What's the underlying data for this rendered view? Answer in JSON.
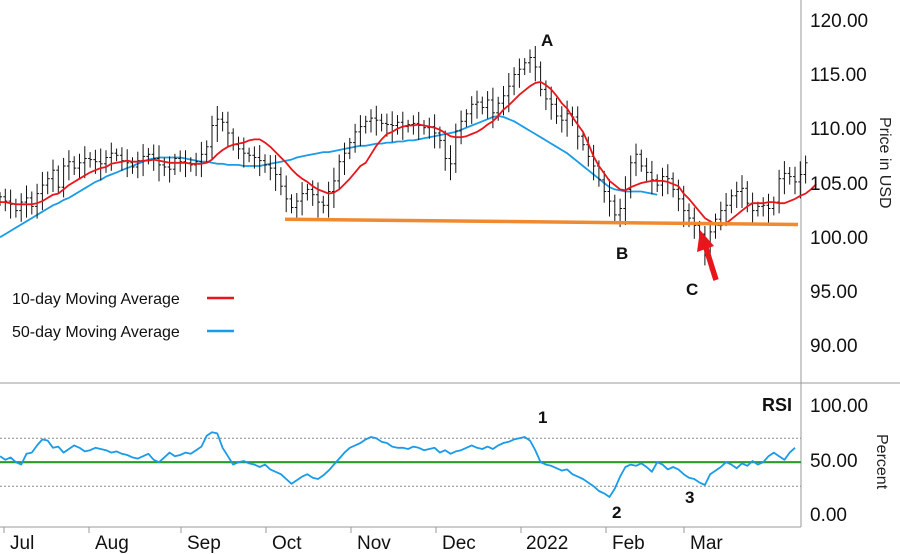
{
  "chart_data": [
    {
      "type": "ohlc",
      "ylabel": "Price in USD",
      "ylim": [
        86,
        122
      ],
      "ytick_labels": [
        "120.00",
        "115.00",
        "110.00",
        "105.00",
        "100.00",
        "95.00",
        "90.00"
      ],
      "ytick_values": [
        120,
        115,
        110,
        105,
        100,
        95,
        90
      ],
      "xtick_labels": [
        "Jul",
        "Aug",
        "Sep",
        "Oct",
        "Nov",
        "Dec",
        "2022",
        "Feb",
        "Mar"
      ],
      "legend": [
        {
          "name": "10-day Moving Average",
          "color": "#e8151b"
        },
        {
          "name": "50-day Moving Average",
          "color": "#1a9be8"
        }
      ],
      "annotations": [
        "A",
        "B",
        "C"
      ],
      "support_line": {
        "color": "#f08a30",
        "start_value": 101.4,
        "end_value": 100.9
      },
      "closes": [
        103.5,
        103.1,
        102.8,
        102.2,
        103.0,
        103.4,
        102.6,
        103.8,
        104.6,
        105.2,
        106.0,
        104.4,
        106.4,
        106.8,
        106.2,
        106.7,
        107.1,
        107.0,
        106.8,
        106.6,
        107.2,
        107.6,
        107.4,
        106.9,
        106.7,
        106.3,
        106.9,
        107.3,
        107.5,
        107.1,
        106.5,
        106.3,
        106.1,
        107.1,
        106.8,
        106.7,
        106.5,
        106.8,
        107.5,
        108.2,
        110.2,
        110.8,
        110.5,
        109.5,
        108.4,
        108.0,
        107.6,
        107.4,
        107.2,
        106.9,
        106.5,
        106.2,
        105.6,
        104.5,
        103.3,
        102.5,
        103.1,
        103.8,
        104.2,
        103.7,
        103.0,
        102.7,
        104.0,
        105.0,
        106.8,
        107.6,
        108.6,
        109.6,
        110.1,
        110.6,
        110.9,
        110.7,
        110.4,
        110.3,
        110.2,
        110.5,
        110.1,
        110.3,
        110.4,
        110.2,
        110.0,
        110.1,
        109.5,
        108.8,
        107.1,
        106.6,
        109.7,
        110.6,
        111.3,
        112.2,
        112.4,
        111.9,
        112.6,
        111.4,
        112.3,
        113.0,
        113.9,
        115.0,
        115.5,
        116.1,
        116.6,
        115.7,
        113.6,
        112.7,
        112.2,
        111.1,
        110.7,
        111.3,
        111.0,
        109.2,
        108.4,
        107.3,
        106.4,
        105.1,
        104.0,
        103.1,
        101.8,
        102.4,
        104.2,
        106.7,
        107.5,
        106.4,
        105.8,
        105.1,
        104.6,
        105.4,
        105.2,
        104.2,
        103.3,
        102.2,
        101.5,
        100.8,
        100.0,
        98.0,
        100.2,
        101.4,
        102.2,
        102.7,
        103.6,
        104.0,
        104.3,
        102.9,
        102.2,
        102.6,
        102.7,
        102.4,
        103.0,
        105.2,
        105.7,
        105.4,
        104.9,
        105.6,
        106.7
      ],
      "ma10": [
        103.0,
        103.0,
        102.9,
        102.8,
        102.8,
        102.8,
        102.8,
        102.9,
        103.1,
        103.4,
        103.7,
        103.8,
        104.2,
        104.6,
        104.9,
        105.2,
        105.5,
        105.8,
        106.0,
        106.2,
        106.3,
        106.6,
        106.7,
        106.8,
        106.9,
        106.8,
        106.8,
        106.9,
        106.9,
        107.0,
        106.9,
        106.8,
        106.7,
        106.7,
        106.7,
        106.7,
        106.6,
        106.6,
        106.6,
        106.7,
        107.0,
        107.5,
        107.9,
        108.2,
        108.4,
        108.5,
        108.6,
        108.8,
        108.9,
        108.9,
        108.6,
        108.2,
        107.7,
        107.2,
        106.7,
        106.1,
        105.6,
        105.2,
        104.9,
        104.5,
        104.2,
        104.0,
        103.8,
        103.9,
        104.2,
        104.7,
        105.2,
        105.8,
        106.4,
        106.7,
        107.5,
        108.3,
        108.9,
        109.4,
        109.6,
        109.9,
        110.1,
        110.2,
        110.2,
        110.3,
        110.2,
        110.1,
        110.0,
        109.8,
        109.5,
        109.2,
        109.1,
        109.1,
        109.2,
        109.4,
        109.6,
        109.9,
        110.3,
        110.6,
        111.1,
        111.7,
        112.1,
        112.6,
        113.1,
        113.5,
        113.9,
        114.2,
        114.3,
        114.0,
        113.6,
        113.0,
        112.3,
        111.8,
        111.0,
        110.3,
        109.6,
        108.5,
        107.3,
        106.4,
        105.7,
        105.0,
        104.6,
        104.2,
        104.1,
        104.4,
        104.6,
        104.8,
        104.9,
        105.0,
        105.0,
        105.0,
        104.9,
        104.7,
        104.5,
        103.8,
        103.3,
        102.7,
        102.1,
        101.5,
        101.2,
        100.9,
        100.8,
        101.0,
        101.4,
        101.8,
        102.2,
        102.6,
        102.9,
        102.9,
        102.9,
        103.0,
        103.0,
        102.9,
        102.9,
        103.1,
        103.3,
        103.6,
        103.8,
        104.2,
        104.7
      ],
      "ma50": [
        99.7,
        100.0,
        100.3,
        100.6,
        100.9,
        101.2,
        101.5,
        101.8,
        102.1,
        102.4,
        102.7,
        102.9,
        103.2,
        103.4,
        103.7,
        104.0,
        104.3,
        104.6,
        104.9,
        105.1,
        105.4,
        105.6,
        105.8,
        106.0,
        106.2,
        106.4,
        106.6,
        106.8,
        107.0,
        107.1,
        107.2,
        107.2,
        107.2,
        107.2,
        107.2,
        107.1,
        107.0,
        106.9,
        106.8,
        106.8,
        106.7,
        106.6,
        106.6,
        106.5,
        106.5,
        106.5,
        106.4,
        106.4,
        106.4,
        106.4,
        106.5,
        106.6,
        106.7,
        106.8,
        106.9,
        107.0,
        107.2,
        107.3,
        107.4,
        107.5,
        107.6,
        107.7,
        107.7,
        107.8,
        107.9,
        108.0,
        108.1,
        108.2,
        108.3,
        108.3,
        108.4,
        108.5,
        108.5,
        108.6,
        108.6,
        108.7,
        108.7,
        108.8,
        108.8,
        108.9,
        109.0,
        109.1,
        109.2,
        109.3,
        109.4,
        109.5,
        109.6,
        109.8,
        110.0,
        110.2,
        110.4,
        110.6,
        110.8,
        111.0,
        111.1,
        111.0,
        110.8,
        110.6,
        110.3,
        110.0,
        109.7,
        109.4,
        109.1,
        108.8,
        108.5,
        108.2,
        107.9,
        107.6,
        107.2,
        106.8,
        106.4,
        106.0,
        105.6,
        105.2,
        104.8,
        104.4,
        104.2,
        104.1,
        104.0,
        104.0,
        104.0,
        104.0,
        103.9,
        103.8,
        103.7
      ]
    },
    {
      "type": "line",
      "title": "RSI",
      "ylabel": "Percent",
      "ylim": [
        -4,
        116
      ],
      "ytick_labels": [
        "100.00",
        "50.00",
        "0.00"
      ],
      "ytick_values": [
        100,
        50,
        0
      ],
      "xtick_labels": [
        "Jul",
        "Aug",
        "Sep",
        "Oct",
        "Nov",
        "Dec",
        "2022",
        "Feb",
        "Mar"
      ],
      "reference_lines": [
        {
          "value": 70,
          "style": "dotted",
          "color": "#888888"
        },
        {
          "value": 50,
          "style": "solid",
          "color": "#2a9a2a"
        },
        {
          "value": 30,
          "style": "dotted",
          "color": "#888888"
        }
      ],
      "annotations": [
        "1",
        "2",
        "3"
      ],
      "values": [
        55,
        52,
        54,
        50,
        48,
        57,
        58,
        64,
        69,
        68,
        62,
        63,
        58,
        61,
        64,
        62,
        59,
        60,
        62,
        61,
        60,
        58,
        59,
        57,
        56,
        54,
        53,
        55,
        57,
        52,
        50,
        54,
        58,
        55,
        56,
        58,
        57,
        60,
        63,
        72,
        75,
        74,
        62,
        55,
        48,
        50,
        51,
        49,
        48,
        46,
        48,
        44,
        42,
        40,
        36,
        32,
        35,
        38,
        40,
        37,
        36,
        39,
        43,
        48,
        53,
        58,
        62,
        64,
        66,
        69,
        71,
        70,
        67,
        66,
        63,
        62,
        62,
        61,
        63,
        62,
        60,
        61,
        62,
        58,
        60,
        57,
        59,
        60,
        62,
        64,
        62,
        61,
        63,
        61,
        64,
        66,
        67,
        69,
        70,
        71,
        68,
        60,
        50,
        48,
        47,
        45,
        43,
        44,
        40,
        38,
        36,
        33,
        30,
        26,
        24,
        21,
        28,
        38,
        46,
        48,
        47,
        49,
        46,
        42,
        50,
        48,
        44,
        46,
        44,
        40,
        37,
        36,
        33,
        31,
        40,
        43,
        46,
        50,
        48,
        45,
        49,
        47,
        51,
        48,
        50,
        55,
        58,
        55,
        52,
        58,
        62
      ]
    }
  ]
}
